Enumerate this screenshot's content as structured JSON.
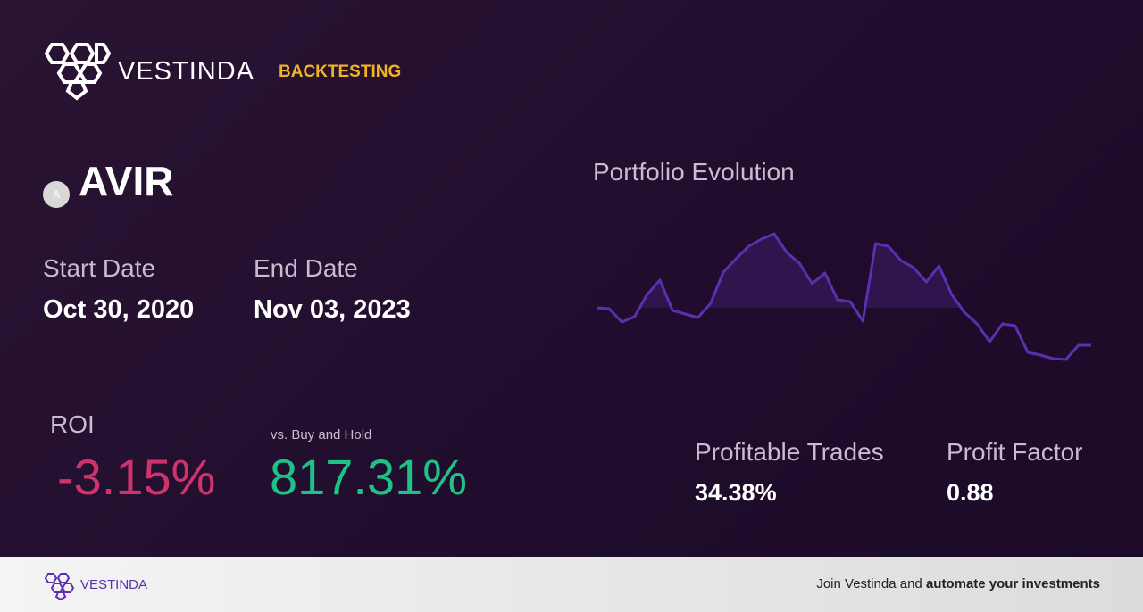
{
  "header": {
    "brand": "VESTINDA",
    "section": "BACKTESTING"
  },
  "asset": {
    "icon_letter": "A",
    "symbol": "AVIR"
  },
  "dates": {
    "start_label": "Start Date",
    "start": "Oct 30, 2020",
    "end_label": "End Date",
    "end": "Nov 03, 2023"
  },
  "metrics": {
    "roi_label": "ROI",
    "roi": "-3.15%",
    "bh_label": "vs. Buy and Hold",
    "bh": "817.31%",
    "trades_label": "Profitable Trades",
    "trades": "34.38%",
    "pf_label": "Profit Factor",
    "pf": "0.88"
  },
  "chart_data": {
    "type": "line",
    "title": "Portfolio Evolution",
    "color": "#5b2fb0",
    "ylim": [
      -70,
      95
    ],
    "values": [
      0,
      -1,
      -16,
      -10,
      15,
      31,
      -3,
      -7,
      -11,
      5,
      40,
      55,
      69,
      77,
      83,
      62,
      50,
      27,
      39,
      9,
      7,
      -15,
      72,
      69,
      53,
      45,
      29,
      47,
      15,
      -5,
      -18,
      -38,
      -18,
      -20,
      -50,
      -53,
      -57,
      -58,
      -42,
      -42
    ]
  },
  "footer": {
    "brand": "VESTINDA",
    "cta": "Join Vestinda and",
    "cta_bold": "automate your investments"
  }
}
